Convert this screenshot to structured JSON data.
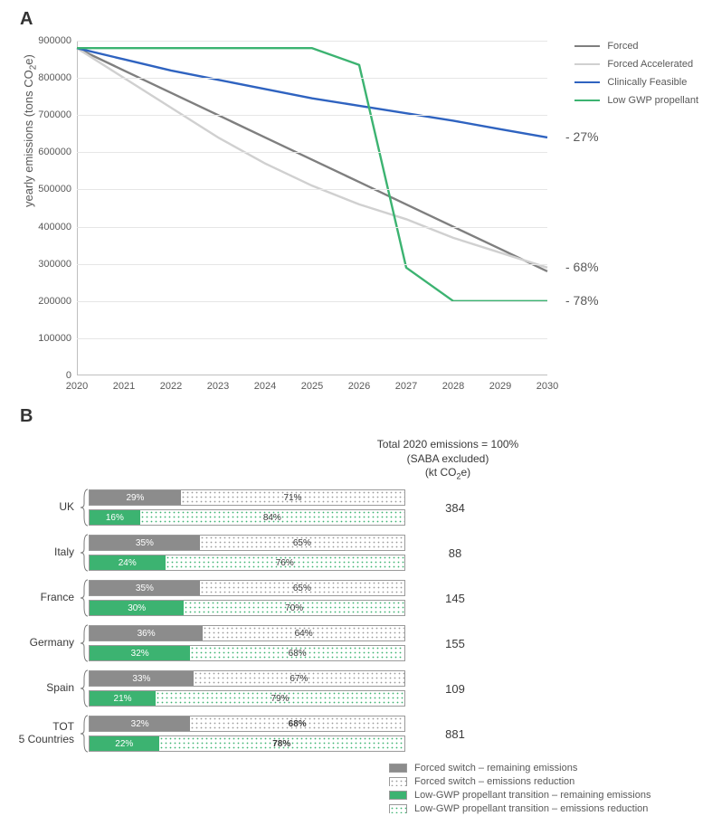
{
  "panelA": {
    "label": "A",
    "yaxis_title": "yearly emissions (tons CO₂e)",
    "xlim": [
      2020,
      2030
    ],
    "ylim": [
      0,
      900000
    ],
    "ytick_step": 100000,
    "xtick_step": 1,
    "grid_color": "#e6e6e6",
    "axis_color": "#bfbfbf",
    "series": [
      {
        "name": "Forced",
        "color": "#7f7f7f",
        "width": 2.4,
        "x": [
          2020,
          2021,
          2022,
          2023,
          2024,
          2025,
          2026,
          2027,
          2028,
          2029,
          2030
        ],
        "y": [
          880000,
          820000,
          760000,
          700000,
          640000,
          580000,
          520000,
          460000,
          400000,
          340000,
          280000
        ]
      },
      {
        "name": "Forced Accelerated",
        "color": "#d0d0d0",
        "width": 2.4,
        "x": [
          2020,
          2021,
          2022,
          2023,
          2024,
          2025,
          2026,
          2027,
          2028,
          2029,
          2030
        ],
        "y": [
          880000,
          800000,
          720000,
          640000,
          570000,
          510000,
          460000,
          420000,
          370000,
          330000,
          290000
        ]
      },
      {
        "name": "Clinically Feasible",
        "color": "#2f63c0",
        "width": 2.4,
        "x": [
          2020,
          2021,
          2022,
          2023,
          2024,
          2025,
          2026,
          2027,
          2028,
          2029,
          2030
        ],
        "y": [
          880000,
          850000,
          820000,
          795000,
          770000,
          745000,
          725000,
          705000,
          685000,
          662000,
          640000
        ]
      },
      {
        "name": "Low GWP propellant",
        "color": "#3cb371",
        "width": 2.4,
        "x": [
          2020,
          2021,
          2022,
          2023,
          2024,
          2025,
          2026,
          2027,
          2028,
          2029,
          2030
        ],
        "y": [
          880000,
          880000,
          880000,
          880000,
          880000,
          880000,
          835000,
          290000,
          200000,
          200000,
          200000
        ]
      }
    ],
    "end_annotations": [
      {
        "text": "- 27%",
        "y": 640000
      },
      {
        "text": "- 68%",
        "y": 290000
      },
      {
        "text": "- 78%",
        "y": 200000
      }
    ],
    "legend_position": "top-right"
  },
  "panelB": {
    "label": "B",
    "header_lines": [
      "Total 2020 emissions = 100%",
      "(SABA excluded)",
      "(kt CO₂e)"
    ],
    "bar_colors": {
      "forced_remaining": "#8c8c8c",
      "forced_reduction_pattern": "#f2f2f2",
      "lowgwp_remaining": "#3cb371",
      "lowgwp_reduction_pattern": "#e4f5ec",
      "border": "#9a9a9a"
    },
    "countries": [
      {
        "name": "UK",
        "kt": "384",
        "forced": {
          "remain": 29,
          "reduce": 71
        },
        "lowgwp": {
          "remain": 16,
          "reduce": 84
        }
      },
      {
        "name": "Italy",
        "kt": "88",
        "forced": {
          "remain": 35,
          "reduce": 65
        },
        "lowgwp": {
          "remain": 24,
          "reduce": 76
        }
      },
      {
        "name": "France",
        "kt": "145",
        "forced": {
          "remain": 35,
          "reduce": 65
        },
        "lowgwp": {
          "remain": 30,
          "reduce": 70
        }
      },
      {
        "name": "Germany",
        "kt": "155",
        "forced": {
          "remain": 36,
          "reduce": 64
        },
        "lowgwp": {
          "remain": 32,
          "reduce": 68
        }
      },
      {
        "name": "Spain",
        "kt": "109",
        "forced": {
          "remain": 33,
          "reduce": 67
        },
        "lowgwp": {
          "remain": 21,
          "reduce": 79
        }
      },
      {
        "name": "TOT\n5 Countries",
        "kt": "881",
        "forced": {
          "remain": 32,
          "reduce": 68
        },
        "lowgwp": {
          "remain": 22,
          "reduce": 78
        },
        "bold_reduce": true
      }
    ],
    "legend": [
      {
        "label": "Forced switch – remaining emissions",
        "fill": "#8c8c8c",
        "pattern": false
      },
      {
        "label": "Forced switch  – emissions reduction",
        "fill": "#ffffff",
        "pattern": "grey"
      },
      {
        "label": "Low-GWP propellant transition – remaining emissions",
        "fill": "#3cb371",
        "pattern": false
      },
      {
        "label": "Low-GWP propellant transition – emissions reduction",
        "fill": "#ffffff",
        "pattern": "green"
      }
    ]
  }
}
